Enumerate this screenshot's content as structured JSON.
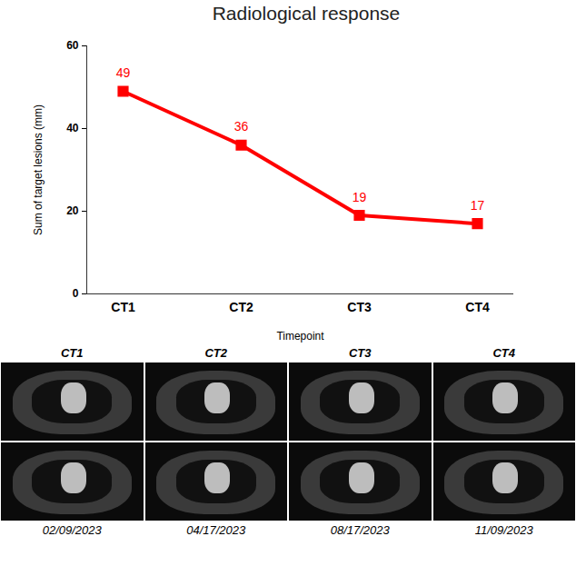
{
  "chart_data": {
    "type": "line",
    "title": "Radiological response",
    "x_label": "Timepoint",
    "y_label": "Sum of target lesions (mm)",
    "categories": [
      "CT1",
      "CT2",
      "CT3",
      "CT4"
    ],
    "values": [
      49,
      36,
      19,
      17
    ],
    "color": "#ff0000",
    "marker": "square",
    "ylim": [
      0,
      60
    ],
    "yticks": [
      0,
      20,
      40,
      60
    ],
    "grid": false,
    "data_labels": true
  },
  "image_panels": {
    "titles": [
      "CT1",
      "CT2",
      "CT3",
      "CT4"
    ],
    "dates": [
      "02/09/2023",
      "04/17/2023",
      "08/17/2023",
      "11/09/2023"
    ]
  }
}
